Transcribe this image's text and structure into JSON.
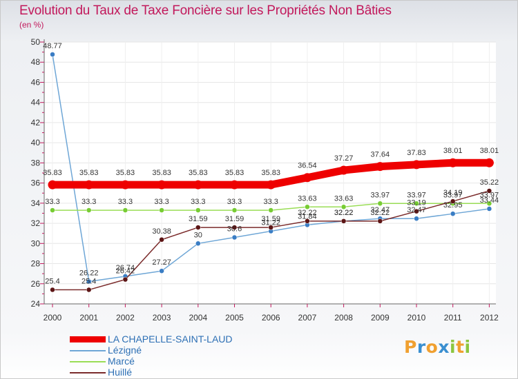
{
  "title": "Evolution du Taux de Taxe Foncière sur les Propriétés Non Bâties",
  "subtitle": "(en %)",
  "logo": {
    "letters": [
      "P",
      "r",
      "o",
      "x",
      "i",
      "t",
      "i"
    ],
    "colors": [
      "#f0a030",
      "#3a8fd0",
      "#f0a030",
      "#3a8fd0",
      "#8cc63f",
      "#f0a030",
      "#8cc63f"
    ]
  },
  "chart_data": {
    "type": "line",
    "title": "Evolution du Taux de Taxe Foncière sur les Propriétés Non Bâties",
    "ylabel": "(en %)",
    "x": [
      "2000",
      "2001",
      "2002",
      "2003",
      "2004",
      "2005",
      "2006",
      "2007",
      "2008",
      "2009",
      "2010",
      "2011",
      "2012"
    ],
    "ylim": [
      24,
      50
    ],
    "yticks": [
      24,
      26,
      28,
      30,
      32,
      34,
      36,
      38,
      40,
      42,
      44,
      46,
      48,
      50
    ],
    "series": [
      {
        "name": "LA CHAPELLE-SAINT-LAUD",
        "color": "#ee0000",
        "thick": true,
        "values": [
          35.83,
          35.83,
          35.83,
          35.83,
          35.83,
          35.83,
          35.83,
          36.54,
          37.27,
          37.64,
          37.83,
          38.01,
          38.01
        ],
        "labels": [
          "35.83",
          "35.83",
          "35.83",
          "35.83",
          "35.83",
          "35.83",
          "35.83",
          "36.54",
          "37.27",
          "37.64",
          "37.83",
          "38.01",
          "38.01"
        ]
      },
      {
        "name": "Lézigné",
        "color": "#6ea6d6",
        "marker": "#3a7dc4",
        "values": [
          48.77,
          26.22,
          26.74,
          27.27,
          30.0,
          30.6,
          31.22,
          31.84,
          32.22,
          32.47,
          32.47,
          32.95,
          33.44
        ],
        "labels": [
          "48.77",
          "26.22",
          "26.74",
          "27.27",
          "30",
          "30.6",
          "31.22",
          "31.84",
          "32.22",
          "32.47",
          "32.47",
          "32.95",
          "33.44"
        ]
      },
      {
        "name": "Marcé",
        "color": "#99dd55",
        "marker": "#77cc33",
        "values": [
          33.3,
          33.3,
          33.3,
          33.3,
          33.3,
          33.3,
          33.3,
          33.63,
          33.63,
          33.97,
          33.97,
          33.97,
          33.97
        ],
        "labels": [
          "33.3",
          "33.3",
          "33.3",
          "33.3",
          "33.3",
          "33.3",
          "33.3",
          "33.63",
          "33.63",
          "33.97",
          "33.97",
          "33.97",
          "33.97"
        ]
      },
      {
        "name": "Huillé",
        "color": "#7a2a2a",
        "marker": "#5c1515",
        "values": [
          25.4,
          25.4,
          26.42,
          30.38,
          31.59,
          31.59,
          31.59,
          32.22,
          32.22,
          32.22,
          33.19,
          34.19,
          35.22
        ],
        "labels": [
          "25.4",
          "25.4",
          "26.42",
          "30.38",
          "31.59",
          "31.59",
          "31.59",
          "32.22",
          "32.22",
          "32.22",
          "33.19",
          "34.19",
          "35.22"
        ]
      }
    ]
  }
}
